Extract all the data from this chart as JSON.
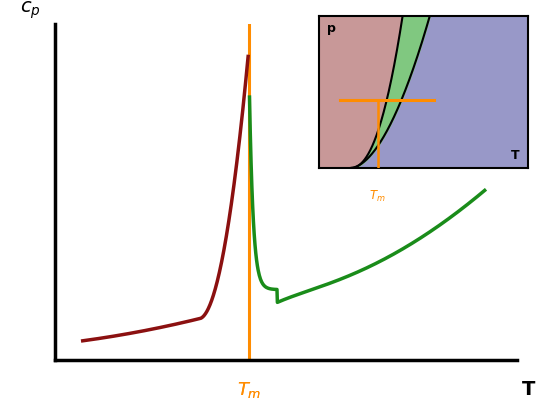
{
  "main_bg": "#ffffff",
  "orange_color": "#FF8C00",
  "dark_red_color": "#8B1010",
  "green_color": "#1A8C1A",
  "inset_pink": "#C89898",
  "inset_green": "#80C880",
  "inset_blue": "#9898C8",
  "Tm": 0.42,
  "xlim": [
    0,
    1.0
  ],
  "ylim": [
    0,
    1.05
  ]
}
